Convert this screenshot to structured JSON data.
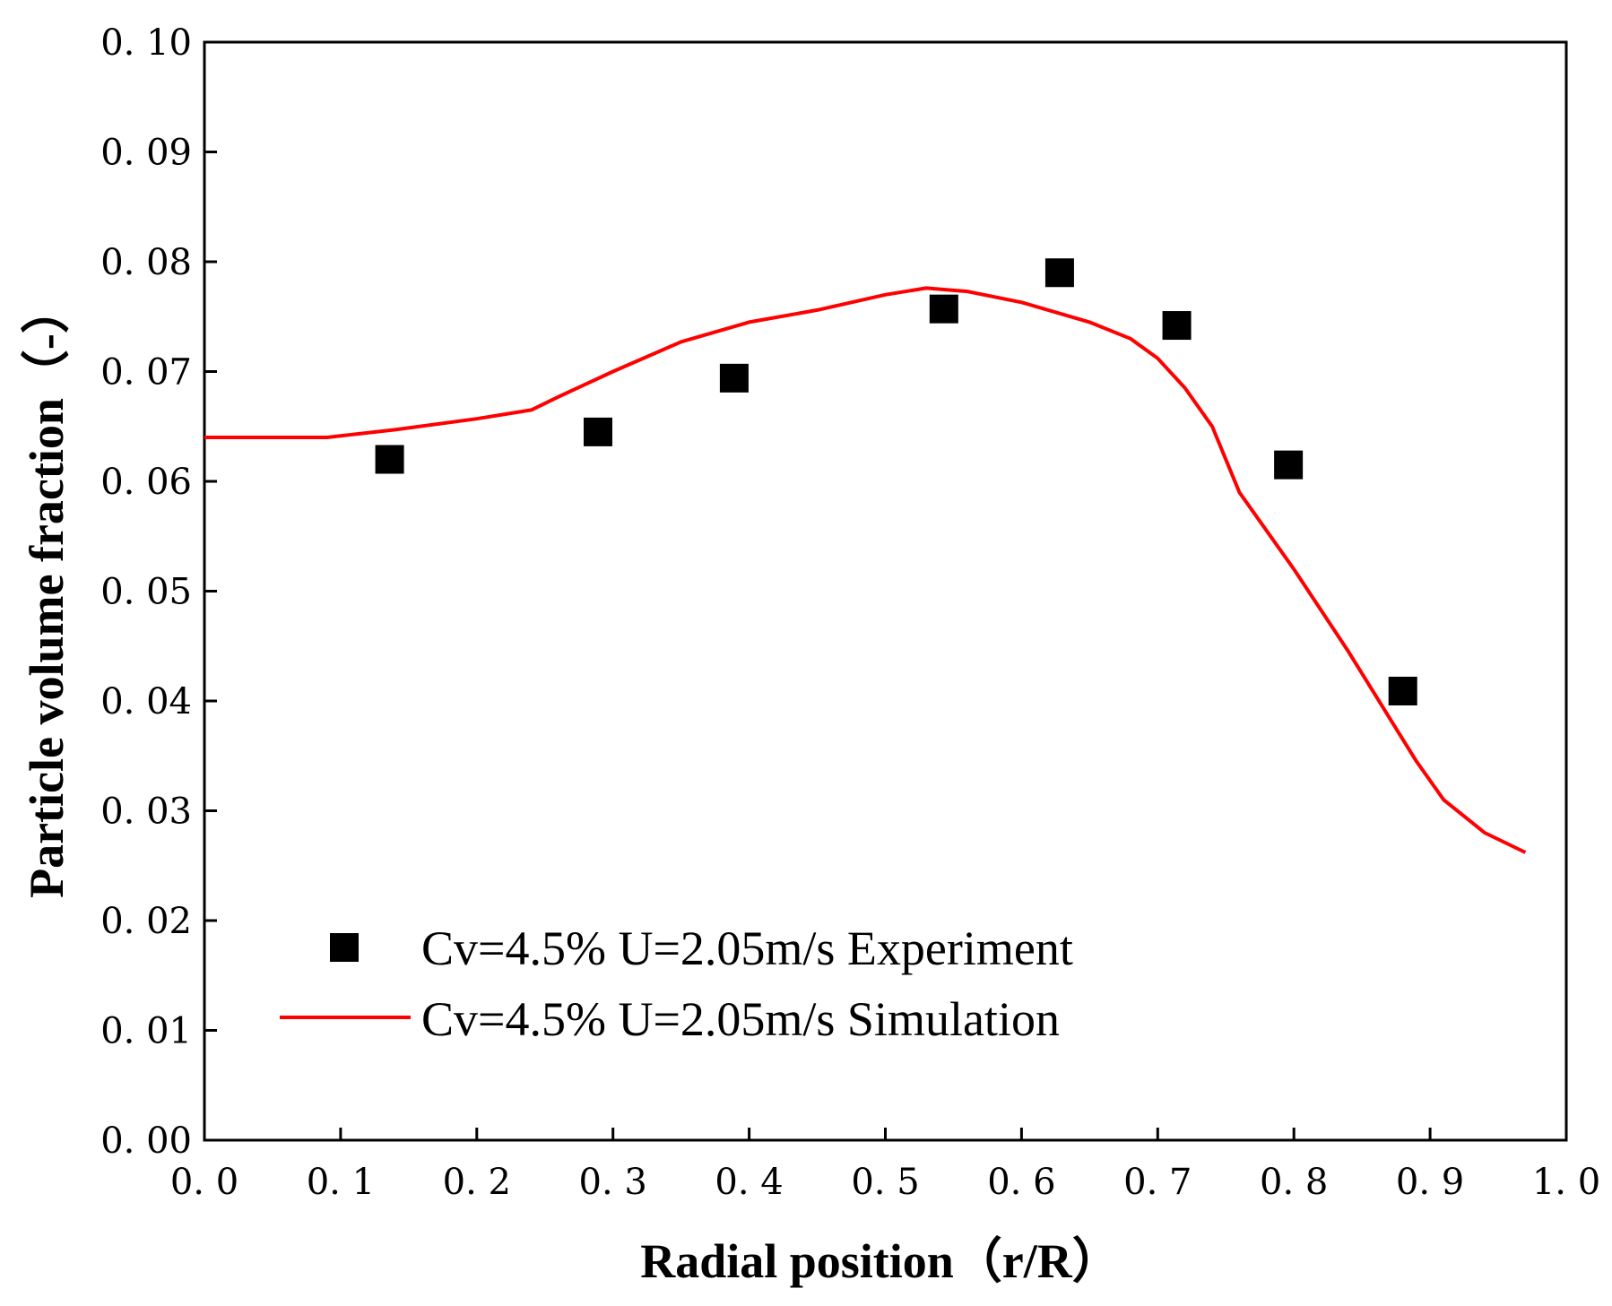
{
  "chart_data": {
    "type": "scatter",
    "title": "",
    "xlabel": "Radial position（r/R）",
    "ylabel": "Particle volume fraction（-）",
    "xlim": [
      0.0,
      1.0
    ],
    "ylim": [
      0.0,
      0.1
    ],
    "x_ticks": [
      "0. 0",
      "0. 1",
      "0. 2",
      "0. 3",
      "0. 4",
      "0. 5",
      "0. 6",
      "0. 7",
      "0. 8",
      "0. 9",
      "1. 0"
    ],
    "y_ticks": [
      "0. 00",
      "0. 01",
      "0. 02",
      "0. 03",
      "0. 04",
      "0. 05",
      "0. 06",
      "0. 07",
      "0. 08",
      "0. 09",
      "0. 10"
    ],
    "x_tick_values": [
      0.0,
      0.1,
      0.2,
      0.3,
      0.4,
      0.5,
      0.6,
      0.7,
      0.8,
      0.9,
      1.0
    ],
    "y_tick_values": [
      0.0,
      0.01,
      0.02,
      0.03,
      0.04,
      0.05,
      0.06,
      0.07,
      0.08,
      0.09,
      0.1
    ],
    "grid": false,
    "legend_position": "bottom-left",
    "series": [
      {
        "name": "Cv=4.5% U=2.05m/s Experiment",
        "kind": "scatter",
        "marker": "square",
        "color": "#000000",
        "x": [
          0.136,
          0.289,
          0.389,
          0.543,
          0.628,
          0.714,
          0.796,
          0.88
        ],
        "y": [
          0.062,
          0.0645,
          0.0694,
          0.0757,
          0.079,
          0.0742,
          0.0615,
          0.0409
        ]
      },
      {
        "name": "Cv=4.5% U=2.05m/s Simulation",
        "kind": "line",
        "color": "#ff0000",
        "x": [
          0.0,
          0.09,
          0.14,
          0.2,
          0.24,
          0.26,
          0.3,
          0.35,
          0.4,
          0.45,
          0.5,
          0.53,
          0.56,
          0.6,
          0.65,
          0.68,
          0.7,
          0.72,
          0.74,
          0.76,
          0.8,
          0.84,
          0.87,
          0.89,
          0.91,
          0.94,
          0.97
        ],
        "y": [
          0.064,
          0.064,
          0.0647,
          0.0657,
          0.0665,
          0.0677,
          0.07,
          0.0727,
          0.0745,
          0.0756,
          0.077,
          0.0776,
          0.0773,
          0.0763,
          0.0745,
          0.073,
          0.0712,
          0.0685,
          0.065,
          0.059,
          0.052,
          0.0445,
          0.0385,
          0.0345,
          0.031,
          0.028,
          0.0262
        ]
      }
    ]
  }
}
